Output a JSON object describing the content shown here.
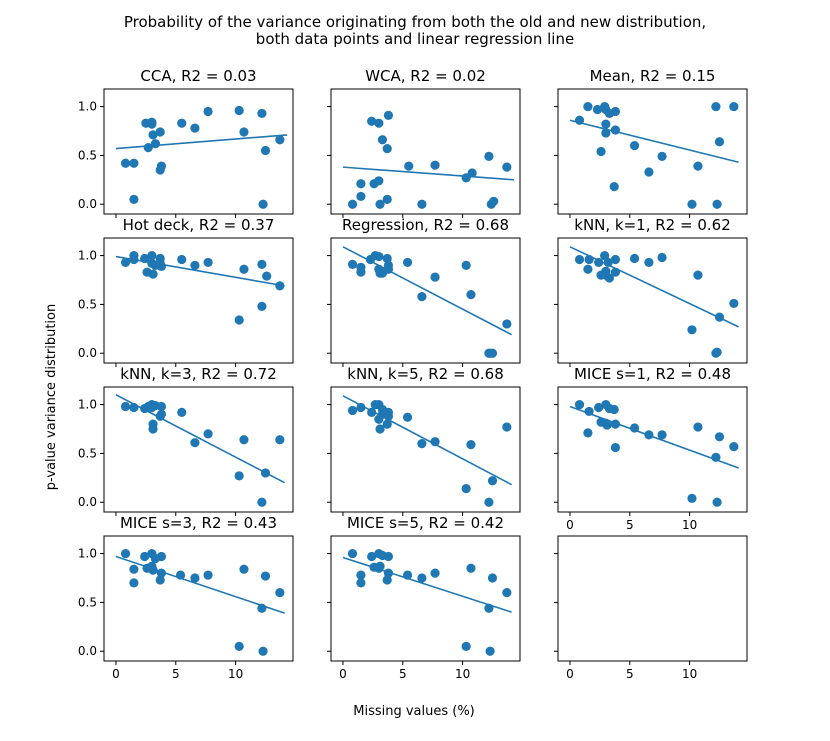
{
  "title_line1": "Probability of the variance originating from both the old and new distribution,",
  "title_line2": "both data points and linear regression line",
  "xlabel": "Missing values (%)",
  "ylabel": "p-value variance distribution",
  "chart_data": {
    "type": "scatter",
    "xlim": [
      -1,
      14.8
    ],
    "ylim": [
      -0.1,
      1.18
    ],
    "xticks": [
      0,
      5,
      10
    ],
    "yticks": [
      0.0,
      0.5,
      1.0
    ],
    "tick_labels_x": [
      "0",
      "5",
      "10"
    ],
    "tick_labels_y": [
      "0.0",
      "0.5",
      "1.0"
    ],
    "color": "#1f77b4",
    "panels": [
      {
        "title": "CCA, R2 = 0.03",
        "points": [
          [
            0.8,
            0.42
          ],
          [
            1.5,
            0.42
          ],
          [
            1.5,
            0.05
          ],
          [
            2.5,
            0.83
          ],
          [
            2.7,
            0.58
          ],
          [
            3.0,
            0.84
          ],
          [
            3.0,
            0.82
          ],
          [
            3.1,
            0.71
          ],
          [
            3.3,
            0.62
          ],
          [
            3.7,
            0.74
          ],
          [
            3.7,
            0.35
          ],
          [
            3.8,
            0.39
          ],
          [
            5.5,
            0.83
          ],
          [
            6.6,
            0.78
          ],
          [
            7.7,
            0.95
          ],
          [
            10.3,
            0.96
          ],
          [
            10.7,
            0.74
          ],
          [
            12.2,
            0.93
          ],
          [
            12.5,
            0.55
          ],
          [
            12.3,
            0.0
          ],
          [
            13.7,
            0.66
          ]
        ],
        "fit": [
          [
            0.0,
            0.57
          ],
          [
            14.3,
            0.71
          ]
        ]
      },
      {
        "title": "WCA, R2 = 0.02",
        "points": [
          [
            0.8,
            0.0
          ],
          [
            1.5,
            0.21
          ],
          [
            1.5,
            0.08
          ],
          [
            2.4,
            0.85
          ],
          [
            2.6,
            0.21
          ],
          [
            3.0,
            0.83
          ],
          [
            3.0,
            0.24
          ],
          [
            3.3,
            0.66
          ],
          [
            3.1,
            0.0
          ],
          [
            3.7,
            0.57
          ],
          [
            3.7,
            0.05
          ],
          [
            3.8,
            0.91
          ],
          [
            5.5,
            0.39
          ],
          [
            6.6,
            0.0
          ],
          [
            7.7,
            0.4
          ],
          [
            10.3,
            0.27
          ],
          [
            10.8,
            0.32
          ],
          [
            12.2,
            0.49
          ],
          [
            12.4,
            0.0
          ],
          [
            12.6,
            0.03
          ],
          [
            13.7,
            0.38
          ]
        ],
        "fit": [
          [
            0.0,
            0.38
          ],
          [
            14.3,
            0.25
          ]
        ]
      },
      {
        "title": "Mean, R2 = 0.15",
        "points": [
          [
            0.8,
            0.86
          ],
          [
            1.5,
            1.0
          ],
          [
            2.3,
            0.97
          ],
          [
            2.6,
            0.54
          ],
          [
            2.9,
            1.0
          ],
          [
            3.0,
            0.97
          ],
          [
            3.0,
            0.82
          ],
          [
            3.0,
            0.73
          ],
          [
            3.3,
            0.93
          ],
          [
            3.8,
            0.95
          ],
          [
            3.8,
            0.76
          ],
          [
            3.7,
            0.18
          ],
          [
            5.4,
            0.6
          ],
          [
            6.6,
            0.33
          ],
          [
            7.7,
            0.49
          ],
          [
            10.2,
            0.0
          ],
          [
            10.7,
            0.39
          ],
          [
            12.2,
            1.0
          ],
          [
            12.5,
            0.64
          ],
          [
            12.3,
            0.0
          ],
          [
            13.7,
            1.0
          ]
        ],
        "fit": [
          [
            0.0,
            0.86
          ],
          [
            14.1,
            0.43
          ]
        ]
      },
      {
        "title": "Hot deck, R2 = 0.37",
        "points": [
          [
            0.8,
            0.93
          ],
          [
            1.5,
            1.0
          ],
          [
            1.5,
            0.96
          ],
          [
            2.4,
            0.97
          ],
          [
            2.6,
            0.83
          ],
          [
            3.0,
            1.0
          ],
          [
            3.0,
            0.92
          ],
          [
            3.1,
            0.81
          ],
          [
            3.3,
            0.9
          ],
          [
            3.7,
            0.97
          ],
          [
            3.7,
            0.92
          ],
          [
            3.8,
            0.89
          ],
          [
            5.5,
            0.96
          ],
          [
            6.6,
            0.9
          ],
          [
            7.7,
            0.93
          ],
          [
            10.3,
            0.34
          ],
          [
            10.7,
            0.86
          ],
          [
            12.2,
            0.91
          ],
          [
            12.2,
            0.48
          ],
          [
            12.6,
            0.79
          ],
          [
            13.7,
            0.69
          ]
        ],
        "fit": [
          [
            0.0,
            0.99
          ],
          [
            14.1,
            0.69
          ]
        ]
      },
      {
        "title": "Regression, R2 = 0.68",
        "points": [
          [
            0.8,
            0.91
          ],
          [
            1.5,
            0.88
          ],
          [
            1.5,
            0.83
          ],
          [
            2.3,
            0.96
          ],
          [
            2.7,
            1.0
          ],
          [
            3.0,
            0.99
          ],
          [
            3.0,
            0.86
          ],
          [
            3.1,
            0.82
          ],
          [
            3.3,
            0.82
          ],
          [
            3.7,
            0.97
          ],
          [
            3.8,
            0.9
          ],
          [
            3.8,
            0.86
          ],
          [
            5.4,
            0.93
          ],
          [
            6.6,
            0.58
          ],
          [
            7.7,
            0.78
          ],
          [
            10.3,
            0.9
          ],
          [
            10.7,
            0.6
          ],
          [
            12.2,
            0.0
          ],
          [
            12.5,
            0.0
          ],
          [
            12.3,
            0.0
          ],
          [
            13.7,
            0.3
          ]
        ],
        "fit": [
          [
            0.0,
            1.09
          ],
          [
            14.1,
            0.19
          ]
        ]
      },
      {
        "title": "kNN, k=1, R2 = 0.62",
        "points": [
          [
            0.8,
            0.96
          ],
          [
            1.5,
            0.86
          ],
          [
            1.6,
            0.96
          ],
          [
            2.4,
            0.93
          ],
          [
            2.6,
            0.8
          ],
          [
            2.9,
            1.0
          ],
          [
            3.0,
            0.84
          ],
          [
            3.0,
            0.8
          ],
          [
            3.2,
            0.93
          ],
          [
            3.3,
            0.77
          ],
          [
            3.8,
            0.96
          ],
          [
            3.8,
            0.83
          ],
          [
            5.4,
            0.97
          ],
          [
            6.6,
            0.93
          ],
          [
            7.7,
            0.98
          ],
          [
            10.2,
            0.24
          ],
          [
            10.7,
            0.8
          ],
          [
            12.2,
            0.0
          ],
          [
            12.3,
            0.01
          ],
          [
            12.5,
            0.37
          ],
          [
            13.7,
            0.51
          ]
        ],
        "fit": [
          [
            0.0,
            1.09
          ],
          [
            14.1,
            0.27
          ]
        ]
      },
      {
        "title": "kNN, k=3, R2 = 0.72",
        "points": [
          [
            0.8,
            0.98
          ],
          [
            1.5,
            0.97
          ],
          [
            2.4,
            0.96
          ],
          [
            2.7,
            0.98
          ],
          [
            3.0,
            1.0
          ],
          [
            3.0,
            0.97
          ],
          [
            3.1,
            0.8
          ],
          [
            3.1,
            0.75
          ],
          [
            3.3,
            0.99
          ],
          [
            3.7,
            0.88
          ],
          [
            3.8,
            0.98
          ],
          [
            3.8,
            0.9
          ],
          [
            5.5,
            0.92
          ],
          [
            6.6,
            0.61
          ],
          [
            7.7,
            0.7
          ],
          [
            10.3,
            0.27
          ],
          [
            10.7,
            0.64
          ],
          [
            12.2,
            0.0
          ],
          [
            12.5,
            0.3
          ],
          [
            13.7,
            0.64
          ]
        ],
        "fit": [
          [
            0.0,
            1.1
          ],
          [
            14.1,
            0.2
          ]
        ]
      },
      {
        "title": "kNN, k=5, R2 = 0.68",
        "points": [
          [
            0.8,
            0.94
          ],
          [
            1.5,
            0.97
          ],
          [
            2.4,
            0.92
          ],
          [
            2.7,
            1.0
          ],
          [
            3.0,
            1.0
          ],
          [
            3.0,
            0.85
          ],
          [
            3.1,
            0.75
          ],
          [
            3.3,
            0.95
          ],
          [
            3.3,
            0.9
          ],
          [
            3.7,
            0.8
          ],
          [
            3.8,
            0.92
          ],
          [
            3.8,
            0.88
          ],
          [
            5.4,
            0.87
          ],
          [
            6.6,
            0.6
          ],
          [
            7.7,
            0.62
          ],
          [
            10.3,
            0.14
          ],
          [
            10.7,
            0.59
          ],
          [
            12.2,
            0.0
          ],
          [
            12.5,
            0.22
          ],
          [
            13.7,
            0.77
          ]
        ],
        "fit": [
          [
            0.0,
            1.09
          ],
          [
            14.1,
            0.18
          ]
        ]
      },
      {
        "title": "MICE s=1, R2 = 0.48",
        "points": [
          [
            0.8,
            1.0
          ],
          [
            1.5,
            0.71
          ],
          [
            1.6,
            0.93
          ],
          [
            2.4,
            0.97
          ],
          [
            2.6,
            0.82
          ],
          [
            3.0,
            1.0
          ],
          [
            3.0,
            0.81
          ],
          [
            3.1,
            0.79
          ],
          [
            3.3,
            0.96
          ],
          [
            3.7,
            0.95
          ],
          [
            3.8,
            0.8
          ],
          [
            3.8,
            0.56
          ],
          [
            5.4,
            0.76
          ],
          [
            6.6,
            0.69
          ],
          [
            7.7,
            0.69
          ],
          [
            10.2,
            0.04
          ],
          [
            10.7,
            0.77
          ],
          [
            12.2,
            0.46
          ],
          [
            12.5,
            0.67
          ],
          [
            12.3,
            0.0
          ],
          [
            13.7,
            0.57
          ]
        ],
        "fit": [
          [
            0.0,
            0.98
          ],
          [
            14.1,
            0.35
          ]
        ]
      },
      {
        "title": "MICE s=3, R2 = 0.43",
        "points": [
          [
            0.8,
            1.0
          ],
          [
            1.5,
            0.84
          ],
          [
            1.5,
            0.7
          ],
          [
            2.4,
            0.97
          ],
          [
            2.6,
            0.85
          ],
          [
            3.0,
            1.0
          ],
          [
            3.0,
            0.87
          ],
          [
            3.1,
            0.83
          ],
          [
            3.3,
            0.95
          ],
          [
            3.7,
            0.73
          ],
          [
            3.8,
            0.97
          ],
          [
            3.8,
            0.8
          ],
          [
            5.4,
            0.78
          ],
          [
            6.6,
            0.75
          ],
          [
            7.7,
            0.78
          ],
          [
            10.3,
            0.05
          ],
          [
            10.7,
            0.84
          ],
          [
            12.2,
            0.44
          ],
          [
            12.5,
            0.77
          ],
          [
            12.3,
            0.0
          ],
          [
            13.7,
            0.6
          ]
        ],
        "fit": [
          [
            0.0,
            0.97
          ],
          [
            14.1,
            0.39
          ]
        ]
      },
      {
        "title": "MICE s=5, R2 = 0.42",
        "points": [
          [
            0.8,
            1.0
          ],
          [
            1.5,
            0.78
          ],
          [
            1.5,
            0.7
          ],
          [
            2.4,
            0.97
          ],
          [
            2.6,
            0.86
          ],
          [
            3.0,
            1.0
          ],
          [
            3.0,
            0.85
          ],
          [
            3.1,
            0.87
          ],
          [
            3.3,
            0.98
          ],
          [
            3.7,
            0.73
          ],
          [
            3.8,
            0.97
          ],
          [
            3.8,
            0.8
          ],
          [
            5.4,
            0.78
          ],
          [
            6.6,
            0.75
          ],
          [
            7.7,
            0.8
          ],
          [
            10.3,
            0.05
          ],
          [
            10.7,
            0.85
          ],
          [
            12.2,
            0.44
          ],
          [
            12.5,
            0.75
          ],
          [
            12.3,
            0.0
          ],
          [
            13.7,
            0.6
          ]
        ],
        "fit": [
          [
            0.0,
            0.96
          ],
          [
            14.1,
            0.4
          ]
        ]
      },
      {
        "title": "",
        "points": [],
        "fit": null,
        "empty": true
      }
    ]
  }
}
